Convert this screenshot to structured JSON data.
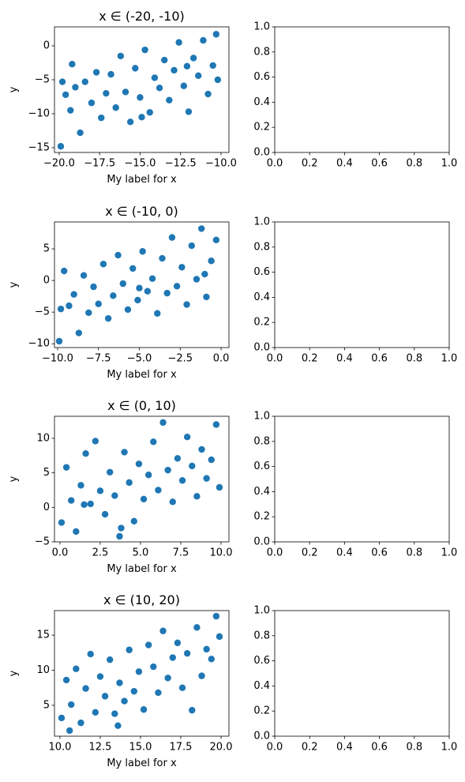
{
  "chart_data": [
    {
      "type": "scatter",
      "title": "x ∈ (-20, -10)",
      "xlabel": "My label for x",
      "ylabel": "y",
      "color": "#1f77b4",
      "x": [
        -19.9,
        -19.6,
        -19.3,
        -19.0,
        -18.7,
        -18.4,
        -18.0,
        -17.7,
        -17.4,
        -17.1,
        -16.8,
        -16.5,
        -16.2,
        -15.9,
        -15.6,
        -15.3,
        -15.0,
        -14.7,
        -14.4,
        -14.1,
        -13.8,
        -13.5,
        -13.2,
        -12.9,
        -12.6,
        -12.3,
        -12.0,
        -11.7,
        -11.4,
        -11.1,
        -10.8,
        -10.5,
        -10.2,
        -19.8,
        -19.2,
        -14.9,
        -12.1,
        -10.3
      ],
      "y": [
        -14.8,
        -7.2,
        -9.5,
        -6.1,
        -12.8,
        -5.3,
        -8.4,
        -3.9,
        -10.6,
        -7.0,
        -4.2,
        -9.1,
        -1.5,
        -6.8,
        -11.2,
        -3.3,
        -7.6,
        -0.6,
        -9.8,
        -4.7,
        -6.2,
        -2.1,
        -8.0,
        -3.6,
        0.5,
        -5.9,
        -9.7,
        -1.8,
        -4.4,
        0.8,
        -7.1,
        -2.9,
        -5.0,
        -5.3,
        -2.7,
        -10.5,
        -3.0,
        1.7
      ],
      "xlim": [
        -20.29,
        -9.51
      ],
      "ylim": [
        -15.7,
        2.79
      ],
      "xticks": [
        {
          "value": -20,
          "label": "−20.0"
        },
        {
          "value": -17.5,
          "label": "−17.5"
        },
        {
          "value": -15,
          "label": "−15.0"
        },
        {
          "value": -12.5,
          "label": "−12.5"
        },
        {
          "value": -10,
          "label": "−10.0"
        }
      ],
      "yticks": [
        0,
        {
          "value": -5,
          "label": "−5"
        },
        {
          "value": -10,
          "label": "−10"
        },
        {
          "value": -15,
          "label": "−15"
        }
      ]
    },
    {
      "type": "empty",
      "xlim": [
        0,
        1
      ],
      "ylim": [
        0,
        1
      ],
      "xticks": [
        {
          "value": 0,
          "label": "0.0"
        },
        0.2,
        0.4,
        0.6,
        0.8,
        {
          "value": 1,
          "label": "1.0"
        }
      ],
      "yticks": [
        {
          "value": 0,
          "label": "0.0"
        },
        0.2,
        0.4,
        0.6,
        0.8,
        {
          "value": 1,
          "label": "1.0"
        }
      ]
    },
    {
      "type": "scatter",
      "title": "x ∈ (-10, 0)",
      "xlabel": "My label for x",
      "ylabel": "y",
      "color": "#1f77b4",
      "x": [
        -9.9,
        -9.6,
        -9.3,
        -9.0,
        -8.7,
        -8.4,
        -8.1,
        -7.8,
        -7.5,
        -7.2,
        -6.9,
        -6.6,
        -6.3,
        -6.0,
        -5.7,
        -5.4,
        -5.1,
        -4.8,
        -4.5,
        -4.2,
        -3.9,
        -3.6,
        -3.3,
        -3.0,
        -2.7,
        -2.4,
        -2.1,
        -1.8,
        -1.5,
        -1.2,
        -0.9,
        -0.6,
        -0.3,
        -9.8,
        -5.0,
        -1.0
      ],
      "y": [
        -9.6,
        1.5,
        -4.0,
        -2.2,
        -8.3,
        0.8,
        -5.1,
        -1.0,
        -3.7,
        2.6,
        -6.0,
        -2.4,
        4.0,
        -0.5,
        -4.6,
        1.9,
        -3.1,
        4.6,
        -1.7,
        0.3,
        -5.2,
        3.5,
        -2.0,
        6.8,
        -0.9,
        2.1,
        -3.8,
        5.5,
        0.2,
        8.2,
        -2.6,
        3.1,
        6.4,
        -4.5,
        -1.2,
        1.0
      ],
      "xlim": [
        -10.19,
        0.48
      ],
      "ylim": [
        -10.6,
        9.25
      ],
      "xticks": [
        {
          "value": -10,
          "label": "−10.0"
        },
        {
          "value": -7.5,
          "label": "−7.5"
        },
        {
          "value": -5,
          "label": "−5.0"
        },
        {
          "value": -2.5,
          "label": "−2.5"
        },
        {
          "value": 0,
          "label": "0.0"
        }
      ],
      "yticks": [
        5,
        0,
        {
          "value": -5,
          "label": "−5"
        },
        {
          "value": -10,
          "label": "−10"
        }
      ]
    },
    {
      "type": "empty",
      "xlim": [
        0,
        1
      ],
      "ylim": [
        0,
        1
      ],
      "xticks": [
        {
          "value": 0,
          "label": "0.0"
        },
        0.2,
        0.4,
        0.6,
        0.8,
        {
          "value": 1,
          "label": "1.0"
        }
      ],
      "yticks": [
        {
          "value": 0,
          "label": "0.0"
        },
        0.2,
        0.4,
        0.6,
        0.8,
        {
          "value": 1,
          "label": "1.0"
        }
      ]
    },
    {
      "type": "scatter",
      "title": "x ∈ (0, 10)",
      "xlabel": "My label for x",
      "ylabel": "y",
      "color": "#1f77b4",
      "x": [
        0.1,
        0.4,
        0.7,
        1.0,
        1.3,
        1.6,
        1.9,
        2.2,
        2.5,
        2.8,
        3.1,
        3.4,
        3.7,
        4.0,
        4.3,
        4.6,
        4.9,
        5.2,
        5.5,
        5.8,
        6.1,
        6.4,
        6.7,
        7.0,
        7.3,
        7.6,
        7.9,
        8.2,
        8.5,
        8.8,
        9.1,
        9.4,
        9.7,
        9.9,
        3.8,
        1.5
      ],
      "y": [
        -2.2,
        5.8,
        1.0,
        -3.5,
        3.2,
        7.8,
        0.5,
        9.6,
        2.4,
        -1.0,
        5.1,
        1.7,
        -4.2,
        8.0,
        3.6,
        -2.0,
        6.3,
        1.2,
        4.7,
        9.5,
        2.5,
        12.3,
        5.4,
        0.8,
        7.1,
        3.9,
        10.2,
        6.0,
        1.6,
        8.4,
        4.2,
        6.9,
        12.0,
        2.9,
        -3.0,
        0.4
      ],
      "xlim": [
        -0.34,
        10.49
      ],
      "ylim": [
        -5,
        13.2
      ],
      "xticks": [
        {
          "value": 0,
          "label": "0.0"
        },
        2.5,
        {
          "value": 5,
          "label": "5.0"
        },
        7.5,
        {
          "value": 10,
          "label": "10.0"
        }
      ],
      "yticks": [
        10,
        5,
        0,
        {
          "value": -5,
          "label": "−5"
        }
      ]
    },
    {
      "type": "empty",
      "xlim": [
        0,
        1
      ],
      "ylim": [
        0,
        1
      ],
      "xticks": [
        {
          "value": 0,
          "label": "0.0"
        },
        0.2,
        0.4,
        0.6,
        0.8,
        {
          "value": 1,
          "label": "1.0"
        }
      ],
      "yticks": [
        {
          "value": 0,
          "label": "0.0"
        },
        0.2,
        0.4,
        0.6,
        0.8,
        {
          "value": 1,
          "label": "1.0"
        }
      ]
    },
    {
      "type": "scatter",
      "title": "x ∈ (10, 20)",
      "xlabel": "My label for x",
      "ylabel": "y",
      "color": "#1f77b4",
      "x": [
        10.1,
        10.4,
        10.7,
        11.0,
        11.3,
        11.6,
        11.9,
        12.2,
        12.5,
        12.8,
        13.1,
        13.4,
        13.7,
        14.0,
        14.3,
        14.6,
        14.9,
        15.2,
        15.5,
        15.8,
        16.1,
        16.4,
        16.7,
        17.0,
        17.3,
        17.6,
        17.9,
        18.2,
        18.5,
        18.8,
        19.1,
        19.4,
        19.7,
        19.9,
        10.6,
        13.6
      ],
      "y": [
        3.2,
        8.6,
        5.1,
        10.2,
        2.5,
        7.4,
        12.3,
        4.0,
        9.1,
        6.3,
        11.5,
        3.8,
        8.2,
        5.6,
        12.9,
        7.0,
        9.8,
        4.4,
        13.6,
        10.5,
        6.8,
        15.6,
        8.9,
        11.8,
        13.9,
        7.5,
        12.4,
        4.3,
        16.1,
        9.2,
        13.0,
        11.6,
        17.7,
        14.8,
        1.4,
        2.1
      ],
      "xlim": [
        9.66,
        20.49
      ],
      "ylim": [
        0.6,
        18.5
      ],
      "xticks": [
        {
          "value": 10,
          "label": "10.0"
        },
        12.5,
        {
          "value": 15,
          "label": "15.0"
        },
        17.5,
        {
          "value": 20,
          "label": "20.0"
        }
      ],
      "yticks": [
        5,
        10,
        15
      ]
    },
    {
      "type": "empty",
      "xlim": [
        0,
        1
      ],
      "ylim": [
        0,
        1
      ],
      "xticks": [
        {
          "value": 0,
          "label": "0.0"
        },
        0.2,
        0.4,
        0.6,
        0.8,
        {
          "value": 1,
          "label": "1.0"
        }
      ],
      "yticks": [
        {
          "value": 0,
          "label": "0.0"
        },
        0.2,
        0.4,
        0.6,
        0.8,
        {
          "value": 1,
          "label": "1.0"
        }
      ]
    }
  ]
}
